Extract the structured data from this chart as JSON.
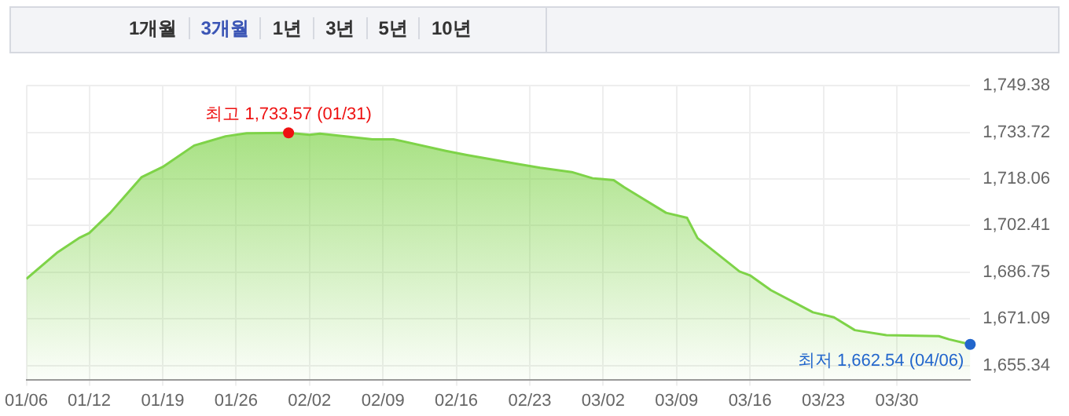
{
  "chart_data": {
    "type": "area",
    "x": [
      "--01-06",
      "--01-09",
      "--01-11",
      "--01-12",
      "--01-14",
      "--01-17",
      "--01-19",
      "--01-22",
      "--01-25",
      "--01-27",
      "--01-31",
      "--02-02",
      "--02-03",
      "--02-08",
      "--02-10",
      "--02-15",
      "--02-17",
      "--02-22",
      "--02-24",
      "--02-27",
      "--03-01",
      "--03-03",
      "--03-04",
      "--03-08",
      "--03-10",
      "--03-11",
      "--03-15",
      "--03-16",
      "--03-18",
      "--03-22",
      "--03-24",
      "--03-26",
      "--03-29",
      "--04-03",
      "--04-04",
      "--04-06"
    ],
    "series": [
      {
        "color": "#7ed348",
        "values": [
          1684.5,
          1693.5,
          1698.2,
          1699.9,
          1706.7,
          1718.7,
          1722.1,
          1729.3,
          1732.4,
          1733.4,
          1733.57,
          1732.9,
          1733.3,
          1731.4,
          1731.4,
          1727.5,
          1726.1,
          1723.0,
          1721.8,
          1720.4,
          1718.3,
          1717.7,
          1715.3,
          1706.7,
          1705.0,
          1698.2,
          1687.0,
          1685.7,
          1680.7,
          1673.3,
          1671.6,
          1667.3,
          1665.6,
          1665.3,
          1664.2,
          1662.54
        ]
      }
    ],
    "xlim": [
      "--01-06",
      "--04-06"
    ],
    "xticks": [
      {
        "value": "--01-06",
        "label": "01/06"
      },
      {
        "value": "--01-12",
        "label": "01/12"
      },
      {
        "value": "--01-19",
        "label": "01/19"
      },
      {
        "value": "--01-26",
        "label": "01/26"
      },
      {
        "value": "--02-02",
        "label": "02/02"
      },
      {
        "value": "--02-09",
        "label": "02/09"
      },
      {
        "value": "--02-16",
        "label": "02/16"
      },
      {
        "value": "--02-23",
        "label": "02/23"
      },
      {
        "value": "--03-02",
        "label": "03/02"
      },
      {
        "value": "--03-09",
        "label": "03/09"
      },
      {
        "value": "--03-16",
        "label": "03/16"
      },
      {
        "value": "--03-23",
        "label": "03/23"
      },
      {
        "value": "--03-30",
        "label": "03/30"
      }
    ],
    "ylim": [
      1650.7,
      1749.38
    ],
    "yticks": [
      {
        "value": 1655.34,
        "label": "1,655.34"
      },
      {
        "value": 1671.09,
        "label": "1,671.09"
      },
      {
        "value": 1686.75,
        "label": "1,686.75"
      },
      {
        "value": 1702.41,
        "label": "1,702.41"
      },
      {
        "value": 1718.06,
        "label": "1,718.06"
      },
      {
        "value": 1733.72,
        "label": "1,733.72"
      },
      {
        "value": 1749.38,
        "label": "1,749.38"
      }
    ],
    "grid": true,
    "annotations": [
      "1개월",
      "3개월",
      "1년",
      "3년",
      "5년",
      "10년",
      {
        "text": "최고 1,733.57 (01/31)",
        "x": "--01-31",
        "y": 1733.57
      },
      {
        "text": "최저 1,662.54 (04/06)",
        "x": "--04-06",
        "y": 1662.54
      }
    ]
  }
}
